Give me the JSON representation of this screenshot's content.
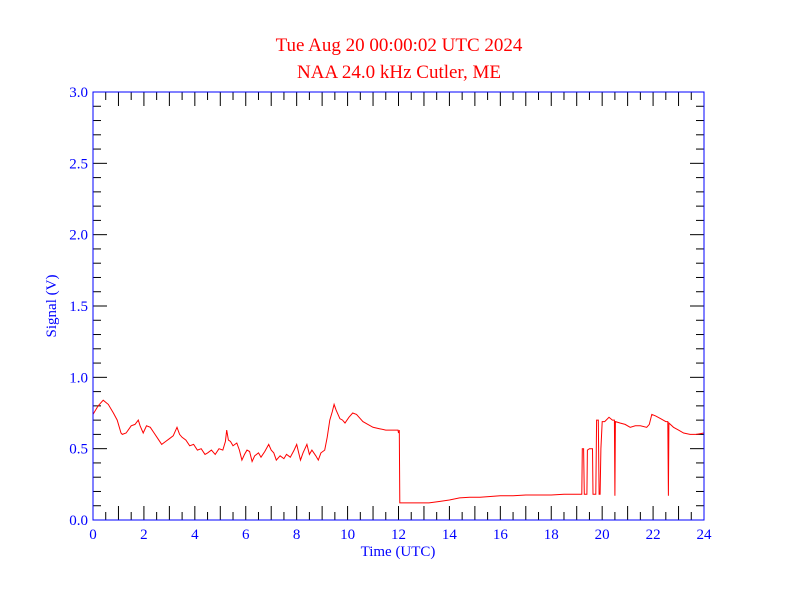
{
  "colors": {
    "title": "#ff0000",
    "axis": "#0000ff",
    "ticks": "#000000",
    "line": "#ff0000",
    "background": "#ffffff"
  },
  "chart_data": {
    "type": "line",
    "title": "Tue Aug 20 00:00:02 UTC 2024",
    "subtitle": "NAA 24.0 kHz Cutler, ME",
    "xlabel": "Time (UTC)",
    "ylabel": "Signal (V)",
    "xlim": [
      0,
      24
    ],
    "ylim": [
      0,
      3.0
    ],
    "x_ticks": [
      "0",
      "2",
      "4",
      "6",
      "8",
      "10",
      "12",
      "14",
      "16",
      "18",
      "20",
      "22",
      "24"
    ],
    "y_ticks": [
      "0.0",
      "0.5",
      "1.0",
      "1.5",
      "2.0",
      "2.5",
      "3.0"
    ],
    "grid": false,
    "series": [
      {
        "name": "NAA 24.0 kHz",
        "points": [
          [
            0,
            0.74
          ],
          [
            0.2,
            0.8
          ],
          [
            0.4,
            0.84
          ],
          [
            0.6,
            0.81
          ],
          [
            0.8,
            0.75
          ],
          [
            0.95,
            0.7
          ],
          [
            1.1,
            0.61
          ],
          [
            1.15,
            0.6
          ],
          [
            1.3,
            0.61
          ],
          [
            1.5,
            0.66
          ],
          [
            1.65,
            0.67
          ],
          [
            1.78,
            0.7
          ],
          [
            1.85,
            0.66
          ],
          [
            1.97,
            0.61
          ],
          [
            2.1,
            0.66
          ],
          [
            2.25,
            0.65
          ],
          [
            2.4,
            0.61
          ],
          [
            2.55,
            0.57
          ],
          [
            2.7,
            0.53
          ],
          [
            2.85,
            0.55
          ],
          [
            3.0,
            0.57
          ],
          [
            3.15,
            0.59
          ],
          [
            3.3,
            0.65
          ],
          [
            3.4,
            0.6
          ],
          [
            3.5,
            0.58
          ],
          [
            3.65,
            0.56
          ],
          [
            3.8,
            0.52
          ],
          [
            3.95,
            0.53
          ],
          [
            4.1,
            0.49
          ],
          [
            4.25,
            0.5
          ],
          [
            4.4,
            0.46
          ],
          [
            4.5,
            0.47
          ],
          [
            4.65,
            0.49
          ],
          [
            4.8,
            0.46
          ],
          [
            4.95,
            0.5
          ],
          [
            5.1,
            0.49
          ],
          [
            5.2,
            0.55
          ],
          [
            5.25,
            0.63
          ],
          [
            5.32,
            0.56
          ],
          [
            5.4,
            0.55
          ],
          [
            5.5,
            0.52
          ],
          [
            5.65,
            0.54
          ],
          [
            5.75,
            0.49
          ],
          [
            5.85,
            0.42
          ],
          [
            5.95,
            0.46
          ],
          [
            6.05,
            0.49
          ],
          [
            6.15,
            0.48
          ],
          [
            6.25,
            0.41
          ],
          [
            6.35,
            0.45
          ],
          [
            6.5,
            0.47
          ],
          [
            6.6,
            0.44
          ],
          [
            6.75,
            0.48
          ],
          [
            6.9,
            0.53
          ],
          [
            7.0,
            0.49
          ],
          [
            7.1,
            0.47
          ],
          [
            7.2,
            0.42
          ],
          [
            7.35,
            0.45
          ],
          [
            7.5,
            0.43
          ],
          [
            7.6,
            0.46
          ],
          [
            7.75,
            0.44
          ],
          [
            7.9,
            0.49
          ],
          [
            8.0,
            0.53
          ],
          [
            8.08,
            0.47
          ],
          [
            8.15,
            0.42
          ],
          [
            8.25,
            0.47
          ],
          [
            8.4,
            0.53
          ],
          [
            8.5,
            0.46
          ],
          [
            8.6,
            0.49
          ],
          [
            8.75,
            0.45
          ],
          [
            8.85,
            0.42
          ],
          [
            8.95,
            0.47
          ],
          [
            9.1,
            0.49
          ],
          [
            9.2,
            0.58
          ],
          [
            9.3,
            0.7
          ],
          [
            9.4,
            0.76
          ],
          [
            9.47,
            0.81
          ],
          [
            9.55,
            0.77
          ],
          [
            9.7,
            0.71
          ],
          [
            9.8,
            0.7
          ],
          [
            9.9,
            0.68
          ],
          [
            10.05,
            0.72
          ],
          [
            10.2,
            0.75
          ],
          [
            10.35,
            0.74
          ],
          [
            10.5,
            0.71
          ],
          [
            10.6,
            0.69
          ],
          [
            10.8,
            0.67
          ],
          [
            11.0,
            0.65
          ],
          [
            11.25,
            0.64
          ],
          [
            11.5,
            0.63
          ],
          [
            11.8,
            0.63
          ],
          [
            11.98,
            0.63
          ],
          [
            12.0,
            0.61
          ],
          [
            12.03,
            0.63
          ],
          [
            12.05,
            0.12
          ],
          [
            12.3,
            0.12
          ],
          [
            12.7,
            0.12
          ],
          [
            13.2,
            0.12
          ],
          [
            13.6,
            0.13
          ],
          [
            14.0,
            0.14
          ],
          [
            14.4,
            0.155
          ],
          [
            14.8,
            0.16
          ],
          [
            15.2,
            0.16
          ],
          [
            15.6,
            0.165
          ],
          [
            16.0,
            0.17
          ],
          [
            16.5,
            0.17
          ],
          [
            17.0,
            0.175
          ],
          [
            17.5,
            0.175
          ],
          [
            18.0,
            0.175
          ],
          [
            18.5,
            0.18
          ],
          [
            19.1,
            0.18
          ],
          [
            19.2,
            0.18
          ],
          [
            19.22,
            0.5
          ],
          [
            19.27,
            0.5
          ],
          [
            19.3,
            0.18
          ],
          [
            19.4,
            0.18
          ],
          [
            19.42,
            0.49
          ],
          [
            19.5,
            0.5
          ],
          [
            19.62,
            0.5
          ],
          [
            19.64,
            0.18
          ],
          [
            19.75,
            0.18
          ],
          [
            19.78,
            0.7
          ],
          [
            19.85,
            0.7
          ],
          [
            19.88,
            0.18
          ],
          [
            19.92,
            0.18
          ],
          [
            19.95,
            0.5
          ],
          [
            20.0,
            0.69
          ],
          [
            20.1,
            0.69
          ],
          [
            20.27,
            0.72
          ],
          [
            20.4,
            0.7
          ],
          [
            20.48,
            0.7
          ],
          [
            20.5,
            0.17
          ],
          [
            20.52,
            0.69
          ],
          [
            20.7,
            0.68
          ],
          [
            20.9,
            0.67
          ],
          [
            21.1,
            0.65
          ],
          [
            21.3,
            0.66
          ],
          [
            21.5,
            0.66
          ],
          [
            21.75,
            0.65
          ],
          [
            21.85,
            0.67
          ],
          [
            21.95,
            0.74
          ],
          [
            22.1,
            0.73
          ],
          [
            22.3,
            0.71
          ],
          [
            22.5,
            0.69
          ],
          [
            22.58,
            0.69
          ],
          [
            22.6,
            0.17
          ],
          [
            22.62,
            0.68
          ],
          [
            22.8,
            0.65
          ],
          [
            23.0,
            0.63
          ],
          [
            23.2,
            0.61
          ],
          [
            23.45,
            0.6
          ],
          [
            23.7,
            0.6
          ],
          [
            24.0,
            0.61
          ]
        ]
      }
    ]
  }
}
